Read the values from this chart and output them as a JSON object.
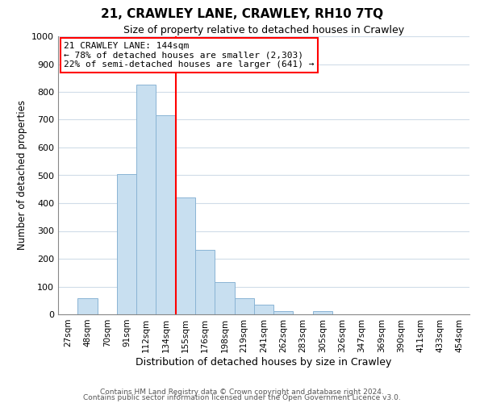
{
  "title": "21, CRAWLEY LANE, CRAWLEY, RH10 7TQ",
  "subtitle": "Size of property relative to detached houses in Crawley",
  "xlabel": "Distribution of detached houses by size in Crawley",
  "ylabel": "Number of detached properties",
  "bar_labels": [
    "27sqm",
    "48sqm",
    "70sqm",
    "91sqm",
    "112sqm",
    "134sqm",
    "155sqm",
    "176sqm",
    "198sqm",
    "219sqm",
    "241sqm",
    "262sqm",
    "283sqm",
    "305sqm",
    "326sqm",
    "347sqm",
    "369sqm",
    "390sqm",
    "411sqm",
    "433sqm",
    "454sqm"
  ],
  "bar_heights": [
    0,
    57,
    0,
    505,
    825,
    715,
    420,
    232,
    117,
    57,
    35,
    12,
    0,
    12,
    0,
    0,
    0,
    0,
    0,
    0,
    0
  ],
  "bar_color": "#c8dff0",
  "bar_edge_color": "#8ab4d4",
  "vline_color": "red",
  "annotation_title": "21 CRAWLEY LANE: 144sqm",
  "annotation_line1": "← 78% of detached houses are smaller (2,303)",
  "annotation_line2": "22% of semi-detached houses are larger (641) →",
  "annotation_box_color": "white",
  "annotation_box_edge": "red",
  "ylim": [
    0,
    1000
  ],
  "yticks": [
    0,
    100,
    200,
    300,
    400,
    500,
    600,
    700,
    800,
    900,
    1000
  ],
  "footer1": "Contains HM Land Registry data © Crown copyright and database right 2024.",
  "footer2": "Contains public sector information licensed under the Open Government Licence v3.0.",
  "background_color": "#ffffff",
  "grid_color": "#d0dce8"
}
